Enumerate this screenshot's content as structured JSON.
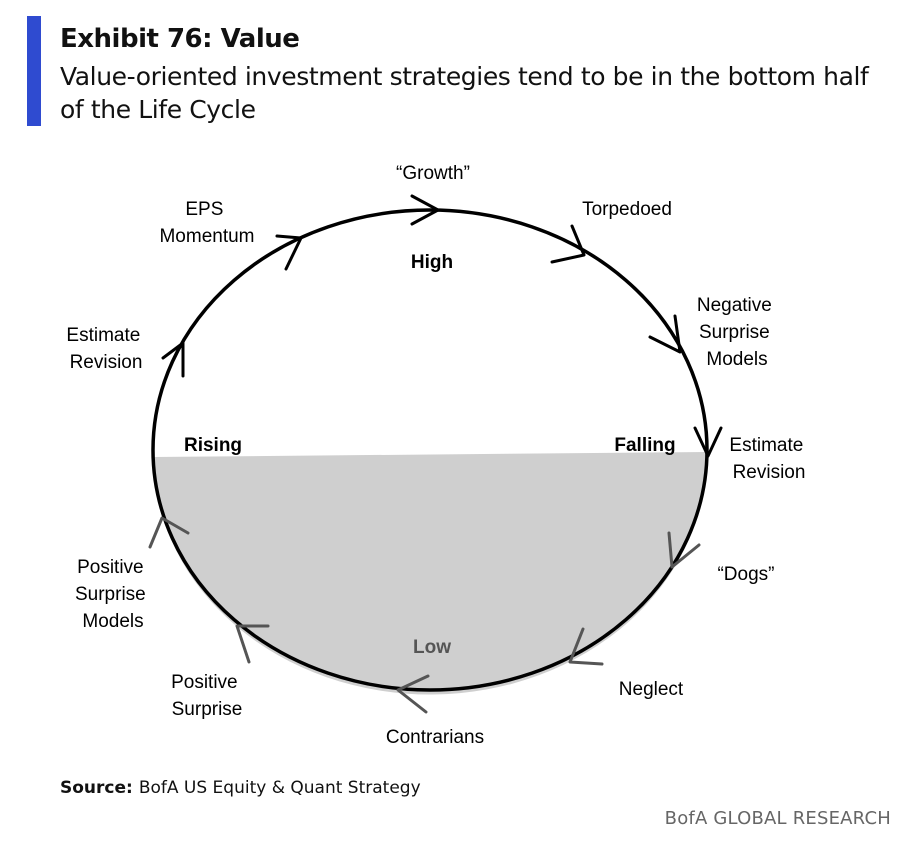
{
  "header": {
    "title": "Exhibit 76: Value",
    "subtitle": "Value-oriented investment strategies tend to be in the bottom half of the Life Cycle"
  },
  "diagram": {
    "labels": {
      "growth": "“Growth”",
      "torpedoed": "Torpedoed",
      "negative_surprise_models": [
        "Negative",
        "Surprise",
        "Models"
      ],
      "estimate_revision_right": [
        "Estimate",
        "Revision"
      ],
      "dogs": "“Dogs”",
      "neglect": "Neglect",
      "contrarians": "Contrarians",
      "positive_surprise": [
        "Positive",
        "Surprise"
      ],
      "positive_surprise_models": [
        "Positive",
        "Surprise",
        "Models"
      ],
      "estimate_revision_left": [
        "Estimate",
        "Revision"
      ],
      "eps_momentum": [
        "EPS",
        "Momentum"
      ],
      "high": "High",
      "low": "Low",
      "rising": "Rising",
      "falling": "Falling"
    },
    "colors": {
      "bottom_half_fill": "#cfcfcf",
      "outline": "#000000",
      "lower_arrows": "#555555"
    }
  },
  "footer": {
    "source_label": "Source:",
    "source_text": "BofA US Equity & Quant Strategy",
    "brand": "BofA GLOBAL RESEARCH"
  }
}
